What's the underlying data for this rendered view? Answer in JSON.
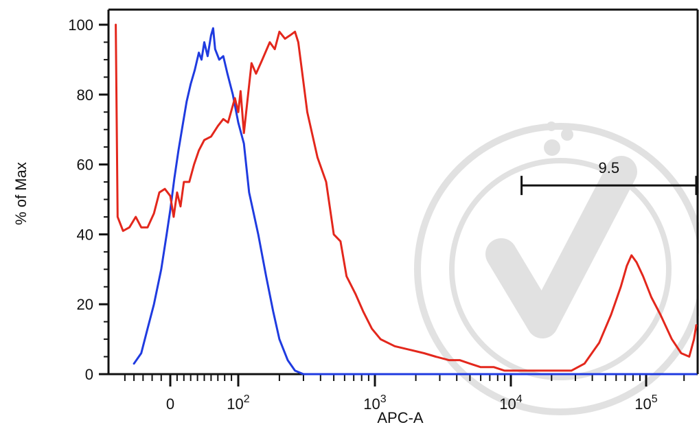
{
  "chart_data": {
    "type": "line",
    "xlabel": "APC-A",
    "ylabel": "% of Max",
    "x_scale": "biexponential",
    "ylim": [
      0,
      100
    ],
    "y_ticks": [
      "0",
      "20",
      "40",
      "60",
      "80",
      "100"
    ],
    "x_tick_labels": [
      {
        "value": 0,
        "text": "0"
      },
      {
        "value": 100,
        "base": "10",
        "exp": "2"
      },
      {
        "value": 1000,
        "base": "10",
        "exp": "3"
      },
      {
        "value": 10000,
        "base": "10",
        "exp": "4"
      },
      {
        "value": 100000,
        "base": "10",
        "exp": "5"
      }
    ],
    "gate": {
      "label": "9.5",
      "x_range": [
        12000,
        250000
      ],
      "y": 54
    },
    "series": [
      {
        "color": "#1f3be0",
        "points": [
          [
            -40,
            3
          ],
          [
            -32,
            6
          ],
          [
            -25,
            13
          ],
          [
            -18,
            20
          ],
          [
            -10,
            30
          ],
          [
            -4,
            40
          ],
          [
            0,
            47
          ],
          [
            6,
            56
          ],
          [
            12,
            64
          ],
          [
            18,
            71
          ],
          [
            24,
            78
          ],
          [
            30,
            83
          ],
          [
            36,
            87
          ],
          [
            42,
            92
          ],
          [
            46,
            90
          ],
          [
            50,
            95
          ],
          [
            55,
            91
          ],
          [
            60,
            97
          ],
          [
            63,
            99
          ],
          [
            66,
            93
          ],
          [
            72,
            90
          ],
          [
            78,
            91
          ],
          [
            84,
            86
          ],
          [
            92,
            80
          ],
          [
            100,
            72
          ],
          [
            110,
            66
          ],
          [
            120,
            52
          ],
          [
            140,
            40
          ],
          [
            160,
            28
          ],
          [
            180,
            18
          ],
          [
            200,
            10
          ],
          [
            230,
            4
          ],
          [
            260,
            1
          ],
          [
            300,
            0
          ],
          [
            1000,
            0
          ],
          [
            10000,
            0
          ],
          [
            100000,
            0
          ],
          [
            250000,
            0
          ]
        ]
      },
      {
        "color": "#e3271c",
        "points": [
          [
            -60,
            100
          ],
          [
            -58,
            45
          ],
          [
            -52,
            41
          ],
          [
            -45,
            42
          ],
          [
            -38,
            45
          ],
          [
            -32,
            42
          ],
          [
            -25,
            42
          ],
          [
            -18,
            46
          ],
          [
            -12,
            52
          ],
          [
            -6,
            53
          ],
          [
            0,
            51
          ],
          [
            5,
            45
          ],
          [
            10,
            52
          ],
          [
            15,
            48
          ],
          [
            20,
            55
          ],
          [
            28,
            55
          ],
          [
            35,
            60
          ],
          [
            42,
            64
          ],
          [
            50,
            67
          ],
          [
            60,
            68
          ],
          [
            70,
            71
          ],
          [
            78,
            73
          ],
          [
            85,
            72
          ],
          [
            95,
            79
          ],
          [
            100,
            75
          ],
          [
            104,
            81
          ],
          [
            110,
            69
          ],
          [
            118,
            80
          ],
          [
            125,
            89
          ],
          [
            135,
            86
          ],
          [
            150,
            90
          ],
          [
            170,
            95
          ],
          [
            185,
            93
          ],
          [
            200,
            98
          ],
          [
            220,
            96
          ],
          [
            240,
            97
          ],
          [
            260,
            98
          ],
          [
            275,
            95
          ],
          [
            290,
            88
          ],
          [
            320,
            75
          ],
          [
            380,
            62
          ],
          [
            440,
            55
          ],
          [
            500,
            40
          ],
          [
            560,
            38
          ],
          [
            620,
            28
          ],
          [
            720,
            23
          ],
          [
            820,
            18
          ],
          [
            950,
            13
          ],
          [
            1100,
            10
          ],
          [
            1400,
            8
          ],
          [
            1800,
            7
          ],
          [
            2300,
            6
          ],
          [
            2800,
            5
          ],
          [
            3500,
            4
          ],
          [
            4200,
            4
          ],
          [
            5000,
            3
          ],
          [
            6000,
            2
          ],
          [
            7500,
            2
          ],
          [
            9000,
            1
          ],
          [
            12000,
            1
          ],
          [
            16000,
            1
          ],
          [
            20000,
            1
          ],
          [
            28000,
            1
          ],
          [
            35000,
            3
          ],
          [
            45000,
            9
          ],
          [
            55000,
            17
          ],
          [
            65000,
            25
          ],
          [
            72000,
            31
          ],
          [
            78000,
            34
          ],
          [
            85000,
            32
          ],
          [
            95000,
            28
          ],
          [
            110000,
            22
          ],
          [
            130000,
            17
          ],
          [
            160000,
            10
          ],
          [
            190000,
            6
          ],
          [
            220000,
            5
          ],
          [
            240000,
            10
          ],
          [
            250000,
            14
          ]
        ]
      }
    ]
  }
}
